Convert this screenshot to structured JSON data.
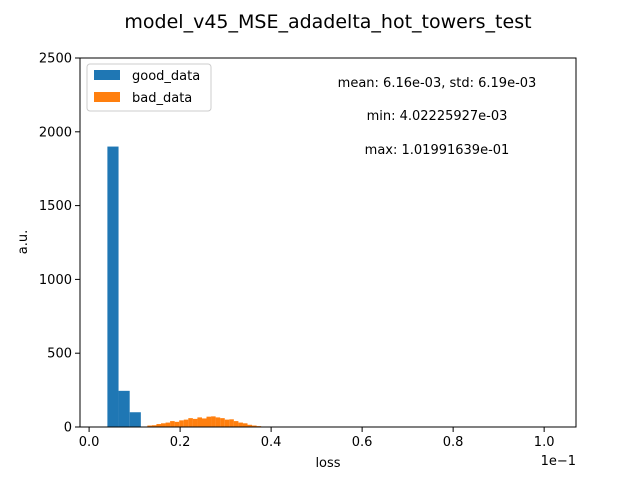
{
  "chart_data": {
    "type": "bar",
    "title": "model_v45_MSE_adadelta_hot_towers_test",
    "xlabel": "loss",
    "ylabel": "a.u.",
    "x_offset_text": "1e−1",
    "xlim": [
      -0.02,
      1.07
    ],
    "ylim": [
      0,
      2500
    ],
    "x_ticks": [
      0.0,
      0.2,
      0.4,
      0.6,
      0.8,
      1.0
    ],
    "x_tick_labels": [
      "0.0",
      "0.2",
      "0.4",
      "0.6",
      "0.8",
      "1.0"
    ],
    "y_ticks": [
      0,
      500,
      1000,
      1500,
      2000,
      2500
    ],
    "y_tick_labels": [
      "0",
      "500",
      "1000",
      "1500",
      "2000",
      "2500"
    ],
    "grid": false,
    "legend_position": "top-left",
    "annotations": [
      "mean: 6.16e-03, std: 6.19e-03",
      "min: 4.02225927e-03",
      "max: 1.01991639e-01"
    ],
    "series": [
      {
        "name": "good_data",
        "color": "#1f77b4",
        "bin_width": 0.0245,
        "bins": [
          {
            "x": 0.0402,
            "value": 1900
          },
          {
            "x": 0.0647,
            "value": 245
          },
          {
            "x": 0.0892,
            "value": 100
          }
        ]
      },
      {
        "name": "bad_data",
        "color": "#ff7f0e",
        "bin_width": 0.0101,
        "bins": [
          {
            "x": 0.128,
            "value": 10
          },
          {
            "x": 0.138,
            "value": 12
          },
          {
            "x": 0.148,
            "value": 20
          },
          {
            "x": 0.158,
            "value": 25
          },
          {
            "x": 0.168,
            "value": 30
          },
          {
            "x": 0.178,
            "value": 40
          },
          {
            "x": 0.188,
            "value": 35
          },
          {
            "x": 0.198,
            "value": 45
          },
          {
            "x": 0.208,
            "value": 50
          },
          {
            "x": 0.218,
            "value": 60
          },
          {
            "x": 0.228,
            "value": 55
          },
          {
            "x": 0.238,
            "value": 65
          },
          {
            "x": 0.248,
            "value": 58
          },
          {
            "x": 0.258,
            "value": 70
          },
          {
            "x": 0.268,
            "value": 72
          },
          {
            "x": 0.278,
            "value": 65
          },
          {
            "x": 0.288,
            "value": 60
          },
          {
            "x": 0.298,
            "value": 50
          },
          {
            "x": 0.308,
            "value": 52
          },
          {
            "x": 0.318,
            "value": 40
          },
          {
            "x": 0.328,
            "value": 30
          },
          {
            "x": 0.338,
            "value": 25
          },
          {
            "x": 0.348,
            "value": 15
          },
          {
            "x": 0.358,
            "value": 10
          },
          {
            "x": 0.368,
            "value": 6
          },
          {
            "x": 0.378,
            "value": 3
          },
          {
            "x": 0.388,
            "value": 2
          }
        ]
      }
    ]
  }
}
